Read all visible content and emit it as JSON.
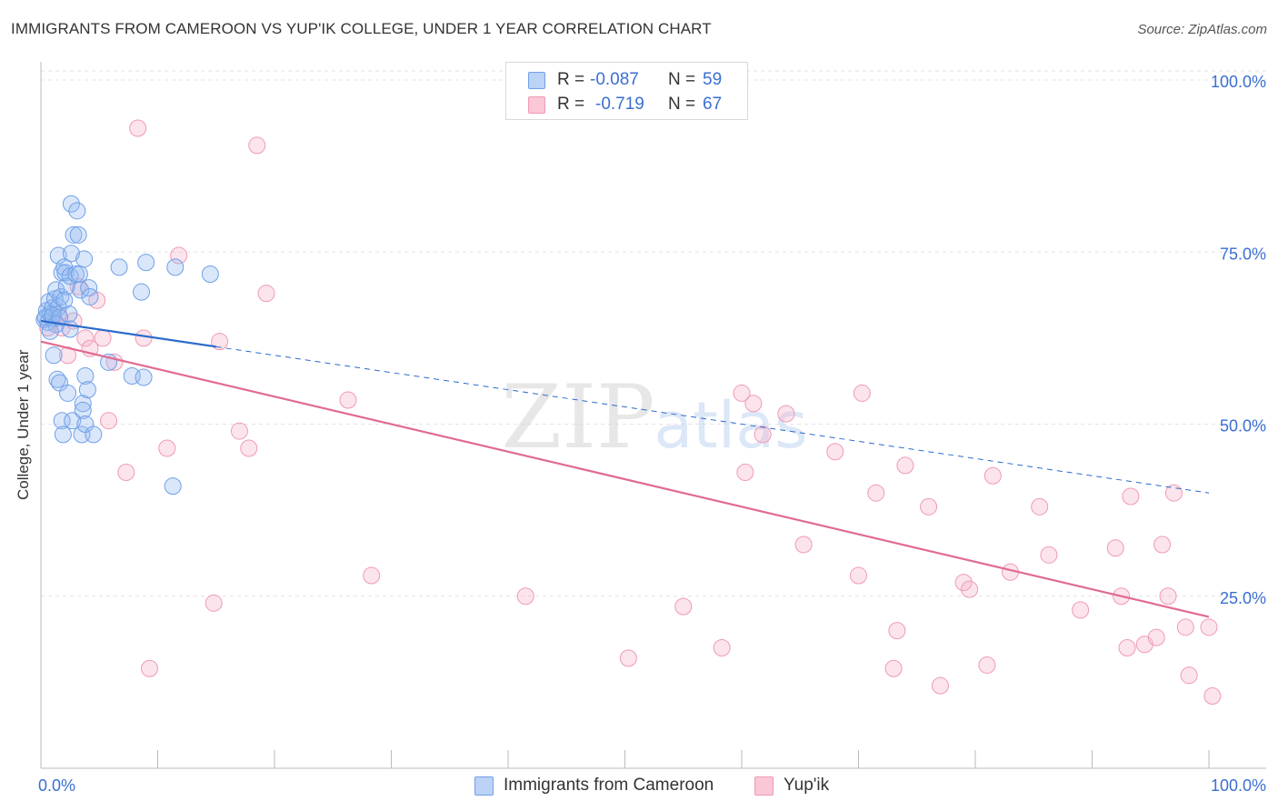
{
  "title": "IMMIGRANTS FROM CAMEROON VS YUP'IK COLLEGE, UNDER 1 YEAR CORRELATION CHART",
  "source": "Source: ZipAtlas.com",
  "watermark": {
    "zip": "ZIP",
    "atlas": "atlas"
  },
  "colors": {
    "blue": "#6fa0e8",
    "blue_line": "#2b6bcc",
    "pink": "#f09ab4",
    "pink_line": "#e06b92",
    "accent_text": "#3a6fd1"
  },
  "legend": {
    "r_label": "R =",
    "n_label": "N =",
    "series": [
      {
        "name": "Immigrants from Cameroon",
        "r": "-0.087",
        "n": "59"
      },
      {
        "name": "Yup'ik",
        "r": "-0.719",
        "n": "67"
      }
    ]
  },
  "chart_data": {
    "type": "scatter",
    "title": "IMMIGRANTS FROM CAMEROON VS YUP'IK COLLEGE, UNDER 1 YEAR CORRELATION CHART",
    "xlabel": "",
    "ylabel": "College, Under 1 year",
    "xlim": [
      0,
      100
    ],
    "ylim": [
      0,
      105
    ],
    "x_tick_labels": [
      "0.0%",
      "100.0%"
    ],
    "y_ticks": [
      25,
      50,
      75,
      100
    ],
    "y_tick_labels": [
      "25.0%",
      "50.0%",
      "75.0%",
      "100.0%"
    ],
    "grid": true,
    "series": [
      {
        "name": "Immigrants from Cameroon",
        "trend": {
          "x_start": 0,
          "y_start": 65.0,
          "x_solid_end": 15,
          "x_end": 100,
          "y_end": 40.0
        },
        "points": [
          [
            0.3,
            65.2
          ],
          [
            0.5,
            66.5
          ],
          [
            0.6,
            64.8
          ],
          [
            0.7,
            67.8
          ],
          [
            0.8,
            66.0
          ],
          [
            0.9,
            65.4
          ],
          [
            1.0,
            66.9
          ],
          [
            1.1,
            60.0
          ],
          [
            1.2,
            68.2
          ],
          [
            1.3,
            69.5
          ],
          [
            1.4,
            56.5
          ],
          [
            1.5,
            74.5
          ],
          [
            1.5,
            67.0
          ],
          [
            1.6,
            56.0
          ],
          [
            1.7,
            68.5
          ],
          [
            1.8,
            72.0
          ],
          [
            1.8,
            50.5
          ],
          [
            1.9,
            48.5
          ],
          [
            2.0,
            72.8
          ],
          [
            2.1,
            72.0
          ],
          [
            2.2,
            70.0
          ],
          [
            2.3,
            54.5
          ],
          [
            2.4,
            66.0
          ],
          [
            2.5,
            63.8
          ],
          [
            2.5,
            71.5
          ],
          [
            2.6,
            74.8
          ],
          [
            2.6,
            82.0
          ],
          [
            2.7,
            50.5
          ],
          [
            2.8,
            77.5
          ],
          [
            3.0,
            71.8
          ],
          [
            3.1,
            81.0
          ],
          [
            3.2,
            77.5
          ],
          [
            3.3,
            71.8
          ],
          [
            3.4,
            69.5
          ],
          [
            3.5,
            48.5
          ],
          [
            3.6,
            53.0
          ],
          [
            3.6,
            52.0
          ],
          [
            3.7,
            74.0
          ],
          [
            3.8,
            57.0
          ],
          [
            3.8,
            50.0
          ],
          [
            4.0,
            55.0
          ],
          [
            4.1,
            69.8
          ],
          [
            4.2,
            68.5
          ],
          [
            4.5,
            48.5
          ],
          [
            5.8,
            59.0
          ],
          [
            6.7,
            72.8
          ],
          [
            7.8,
            57.0
          ],
          [
            8.6,
            69.2
          ],
          [
            8.8,
            56.8
          ],
          [
            9.0,
            73.5
          ],
          [
            11.3,
            41.0
          ],
          [
            11.5,
            72.8
          ],
          [
            14.5,
            71.8
          ],
          [
            0.4,
            65.5
          ],
          [
            1.0,
            65.8
          ],
          [
            1.3,
            64.5
          ],
          [
            2.0,
            68.0
          ],
          [
            1.6,
            65.5
          ],
          [
            0.8,
            63.5
          ]
        ]
      },
      {
        "name": "Yup'ik",
        "trend": {
          "x_start": 0,
          "y_start": 62.0,
          "x_end": 100,
          "y_end": 22.0
        },
        "points": [
          [
            1.0,
            65.5
          ],
          [
            1.8,
            64.0
          ],
          [
            2.3,
            60.0
          ],
          [
            2.8,
            65.0
          ],
          [
            3.2,
            70.0
          ],
          [
            3.8,
            62.5
          ],
          [
            4.2,
            61.0
          ],
          [
            4.8,
            68.0
          ],
          [
            5.3,
            62.5
          ],
          [
            5.8,
            50.5
          ],
          [
            6.3,
            59.0
          ],
          [
            7.3,
            43.0
          ],
          [
            8.3,
            93.0
          ],
          [
            8.8,
            62.5
          ],
          [
            9.3,
            14.5
          ],
          [
            10.8,
            46.5
          ],
          [
            11.8,
            74.5
          ],
          [
            14.8,
            24.0
          ],
          [
            15.3,
            62.0
          ],
          [
            17.0,
            49.0
          ],
          [
            17.8,
            46.5
          ],
          [
            18.5,
            90.5
          ],
          [
            19.3,
            69.0
          ],
          [
            26.3,
            53.5
          ],
          [
            28.3,
            28.0
          ],
          [
            41.5,
            25.0
          ],
          [
            50.3,
            16.0
          ],
          [
            55.0,
            23.5
          ],
          [
            58.3,
            17.5
          ],
          [
            60.0,
            54.5
          ],
          [
            60.3,
            43.0
          ],
          [
            61.0,
            53.0
          ],
          [
            61.8,
            48.5
          ],
          [
            63.8,
            51.5
          ],
          [
            65.3,
            32.5
          ],
          [
            68.0,
            46.0
          ],
          [
            70.0,
            28.0
          ],
          [
            70.3,
            54.5
          ],
          [
            71.5,
            40.0
          ],
          [
            73.0,
            14.5
          ],
          [
            73.3,
            20.0
          ],
          [
            74.0,
            44.0
          ],
          [
            76.0,
            38.0
          ],
          [
            77.0,
            12.0
          ],
          [
            79.0,
            27.0
          ],
          [
            79.5,
            26.0
          ],
          [
            81.0,
            15.0
          ],
          [
            81.5,
            42.5
          ],
          [
            83.0,
            28.5
          ],
          [
            85.5,
            38.0
          ],
          [
            86.3,
            31.0
          ],
          [
            89.0,
            23.0
          ],
          [
            92.0,
            32.0
          ],
          [
            92.5,
            25.0
          ],
          [
            93.0,
            17.5
          ],
          [
            93.3,
            39.5
          ],
          [
            94.5,
            18.0
          ],
          [
            95.5,
            19.0
          ],
          [
            96.0,
            32.5
          ],
          [
            96.5,
            25.0
          ],
          [
            97.0,
            40.0
          ],
          [
            98.0,
            20.5
          ],
          [
            98.3,
            13.5
          ],
          [
            100.0,
            20.5
          ],
          [
            100.3,
            10.5
          ],
          [
            1.5,
            66.0
          ],
          [
            0.6,
            64.0
          ]
        ]
      }
    ]
  }
}
